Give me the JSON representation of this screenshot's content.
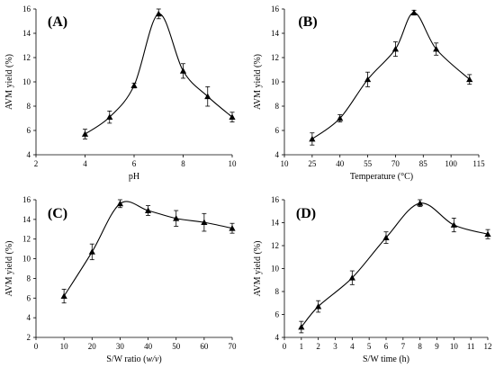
{
  "chart_data": [
    {
      "panel": "(A)",
      "type": "line",
      "xlabel": "pH",
      "ylabel": "AVM yield (%)",
      "xlim": [
        2,
        10
      ],
      "xticks": [
        2,
        4,
        6,
        8,
        10
      ],
      "ylim": [
        4,
        16
      ],
      "yticks": [
        4,
        6,
        8,
        10,
        12,
        14,
        16
      ],
      "x": [
        4,
        5,
        6,
        7,
        8,
        9,
        10
      ],
      "y": [
        5.7,
        7.1,
        9.7,
        15.6,
        10.9,
        8.8,
        7.1
      ],
      "yerr": [
        0.4,
        0.5,
        0.2,
        0.4,
        0.6,
        0.8,
        0.4
      ]
    },
    {
      "panel": "(B)",
      "type": "line",
      "xlabel": "Temperature (°C)",
      "ylabel": "AVM yield (%)",
      "xlim": [
        10,
        115
      ],
      "xticks": [
        10,
        25,
        40,
        55,
        70,
        85,
        100,
        115
      ],
      "ylim": [
        4,
        16
      ],
      "yticks": [
        4,
        6,
        8,
        10,
        12,
        14,
        16
      ],
      "x": [
        25,
        40,
        55,
        70,
        80,
        92,
        110
      ],
      "y": [
        5.3,
        7.0,
        10.2,
        12.7,
        15.7,
        12.7,
        10.2
      ],
      "yerr": [
        0.5,
        0.3,
        0.6,
        0.6,
        0.2,
        0.5,
        0.4
      ]
    },
    {
      "panel": "(C)",
      "type": "line",
      "xlabel": "S/W ratio (w/v)",
      "ylabel": "AVM yield (%)",
      "xlim": [
        0,
        70
      ],
      "xticks": [
        0,
        10,
        20,
        30,
        40,
        50,
        60,
        70
      ],
      "ylim": [
        2,
        16
      ],
      "yticks": [
        2,
        4,
        6,
        8,
        10,
        12,
        14,
        16
      ],
      "x": [
        10,
        20,
        30,
        40,
        50,
        60,
        70
      ],
      "y": [
        6.2,
        10.7,
        15.6,
        14.9,
        14.1,
        13.7,
        13.1
      ],
      "yerr": [
        0.7,
        0.8,
        0.4,
        0.5,
        0.8,
        0.9,
        0.5
      ]
    },
    {
      "panel": "(D)",
      "type": "line",
      "xlabel": "S/W time (h)",
      "ylabel": "AVM yield (%)",
      "xlim": [
        0,
        12
      ],
      "xticks": [
        0,
        1,
        2,
        3,
        4,
        5,
        6,
        7,
        8,
        9,
        10,
        11,
        12
      ],
      "ylim": [
        4,
        16
      ],
      "yticks": [
        4,
        6,
        8,
        10,
        12,
        14,
        16
      ],
      "x": [
        1,
        2,
        4,
        6,
        8,
        10,
        12
      ],
      "y": [
        4.9,
        6.7,
        9.2,
        12.7,
        15.7,
        13.8,
        13.0
      ],
      "yerr": [
        0.5,
        0.5,
        0.6,
        0.5,
        0.3,
        0.6,
        0.4
      ]
    }
  ]
}
